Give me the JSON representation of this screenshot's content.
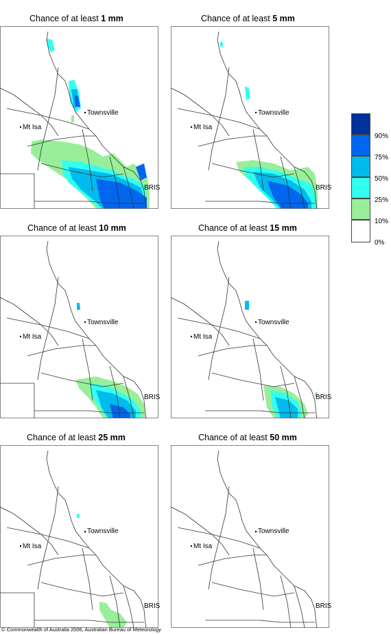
{
  "panels": [
    {
      "title": "Chance of at least",
      "threshold": "1 mm"
    },
    {
      "title": "Chance of at least",
      "threshold": "5 mm"
    },
    {
      "title": "Chance of at least",
      "threshold": "10 mm"
    },
    {
      "title": "Chance of at least",
      "threshold": "15 mm"
    },
    {
      "title": "Chance of at least",
      "threshold": "25 mm"
    },
    {
      "title": "Chance of at least",
      "threshold": "50 mm"
    }
  ],
  "places": {
    "townsville": "Townsville",
    "mt_isa": "Mt Isa",
    "bris": "BRIS"
  },
  "legend": {
    "labels": [
      "90%",
      "75%",
      "50%",
      "25%",
      "10%",
      "0%"
    ],
    "colors": [
      "#003399",
      "#0066ee",
      "#00bbee",
      "#33ffee",
      "#99ee99",
      "#ffffff"
    ]
  },
  "footer": "© Commonwealth of Australia 2006, Australian Bureau of Meteorology"
}
